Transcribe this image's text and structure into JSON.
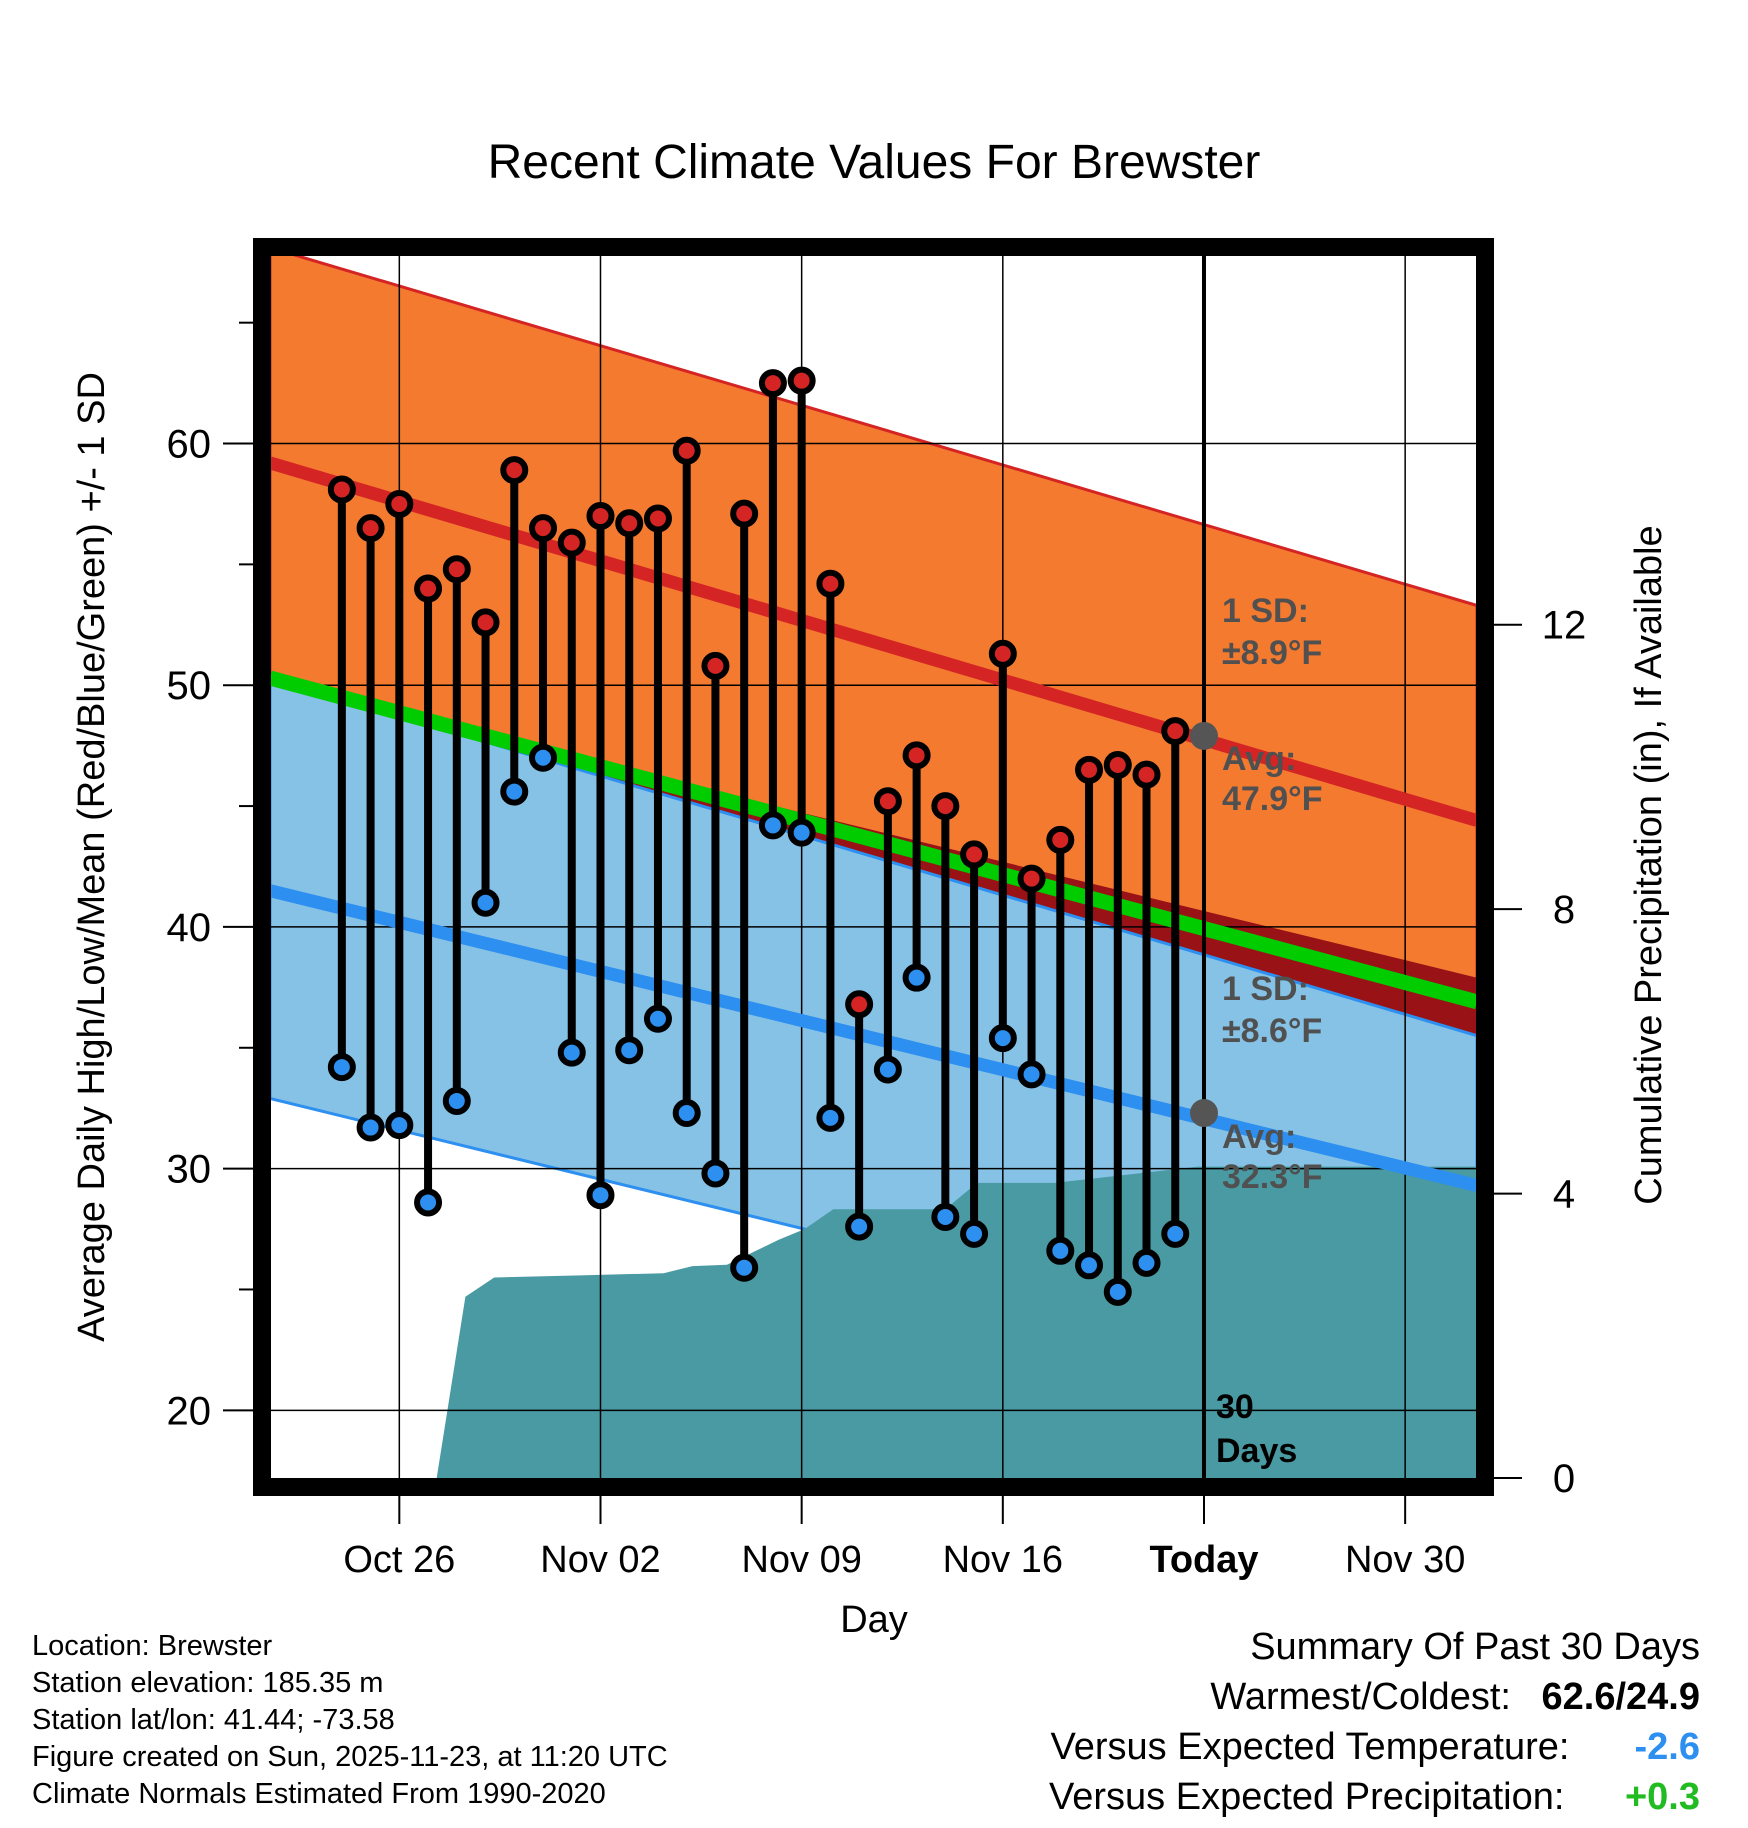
{
  "chart_data": {
    "type": "line",
    "title": "Recent Climate Values For Brewster",
    "xlabel": "Day",
    "ylabel": "Average Daily High/Low/Mean (Red/Blue/Green) +/- 1 SD",
    "y2label": "Cumulative Precipitation (in), If Available",
    "ylim": [
      17.2,
      67.8
    ],
    "y_ticks": [
      20,
      30,
      40,
      50,
      60
    ],
    "y2lim": [
      0,
      17.2
    ],
    "y2_ticks": [
      0,
      4,
      8,
      12
    ],
    "x_range_days": [
      -32.5,
      9.5
    ],
    "x_ticks": [
      {
        "day": -28,
        "label": "Oct 26"
      },
      {
        "day": -21,
        "label": "Nov 02"
      },
      {
        "day": -14,
        "label": "Nov 09"
      },
      {
        "day": -7,
        "label": "Nov 16"
      },
      {
        "day": 0,
        "label": "Today"
      },
      {
        "day": 7,
        "label": "Nov 30"
      }
    ],
    "normal_high": {
      "start": 59.2,
      "end": 44.4,
      "sd_label": "1 SD:",
      "sd_value": "±8.9°F",
      "avg_label": "Avg:",
      "avg_value": "47.9°F",
      "today_avg": 47.9,
      "sd": 8.9
    },
    "normal_low": {
      "start": 41.5,
      "end": 29.3,
      "sd_label": "1 SD:",
      "sd_value": "±8.6°F",
      "avg_label": "Avg:",
      "avg_value": "32.3°F",
      "today_avg": 32.3,
      "sd": 8.6
    },
    "normal_mean": {
      "start": 50.3,
      "end": 36.9
    },
    "days_offset": [
      -30,
      -29,
      -28,
      -27,
      -26,
      -25,
      -24,
      -23,
      -22,
      -21,
      -20,
      -19,
      -18,
      -17,
      -16,
      -15,
      -14,
      -13,
      -12,
      -11,
      -10,
      -9,
      -8,
      -7,
      -6,
      -5,
      -4,
      -3,
      -2,
      -1
    ],
    "highs": [
      58.1,
      56.5,
      57.5,
      54.0,
      54.8,
      52.6,
      58.9,
      56.5,
      55.9,
      57.0,
      56.7,
      56.9,
      59.7,
      50.8,
      57.1,
      62.5,
      62.6,
      54.2,
      36.8,
      45.2,
      47.1,
      45.0,
      43.0,
      51.3,
      42.0,
      43.6,
      46.5,
      46.7,
      46.3,
      48.1
    ],
    "lows": [
      34.2,
      31.7,
      31.8,
      28.6,
      32.8,
      41.0,
      45.6,
      47.0,
      34.8,
      28.9,
      34.9,
      36.2,
      32.3,
      29.8,
      25.9,
      44.2,
      43.9,
      32.1,
      27.6,
      34.1,
      37.9,
      28.0,
      27.3,
      35.4,
      33.9,
      26.6,
      26.0,
      24.9,
      26.1,
      27.3
    ],
    "precip_days": [
      -32.5,
      -26.7,
      -25.7,
      -24.7,
      -21.7,
      -18.8,
      -17.8,
      -16.6,
      -14.8,
      -13.9,
      -12.9,
      -9.0,
      -7.9,
      -5.2,
      -3.0,
      -0.2,
      9.5
    ],
    "precip_cum": [
      0,
      0,
      2.55,
      2.82,
      2.85,
      2.88,
      2.98,
      3.0,
      3.35,
      3.5,
      3.78,
      3.78,
      4.15,
      4.15,
      4.25,
      4.38,
      4.38
    ],
    "precip_label_line1": "30",
    "precip_label_line2": "Days"
  },
  "info": {
    "location": "Location: Brewster",
    "elevation": "Station elevation: 185.35 m",
    "latlon": "Station lat/lon: 41.44; -73.58",
    "created": "Figure created on Sun, 2025-11-23, at 11:20 UTC",
    "normals": "Climate Normals Estimated From 1990-2020"
  },
  "summary": {
    "title": "Summary Of Past 30 Days",
    "warm_cold_label": "Warmest/Coldest:",
    "warm_cold_value": "62.6/24.9",
    "temp_label": "Versus Expected Temperature:",
    "temp_value": "-2.6",
    "temp_color": "#2d8ff0",
    "precip_label": "Versus Expected Precipitation:",
    "precip_value": "+0.3",
    "precip_color": "#22bb22"
  },
  "colors": {
    "high_band": "#f47a30",
    "high_line": "#d42424",
    "low_band": "#86c2e6",
    "low_line": "#2d8ff0",
    "mean_line": "#00cc00",
    "overlap": "#981216",
    "precip": "#4a9aa3",
    "label_grey": "#505050"
  }
}
